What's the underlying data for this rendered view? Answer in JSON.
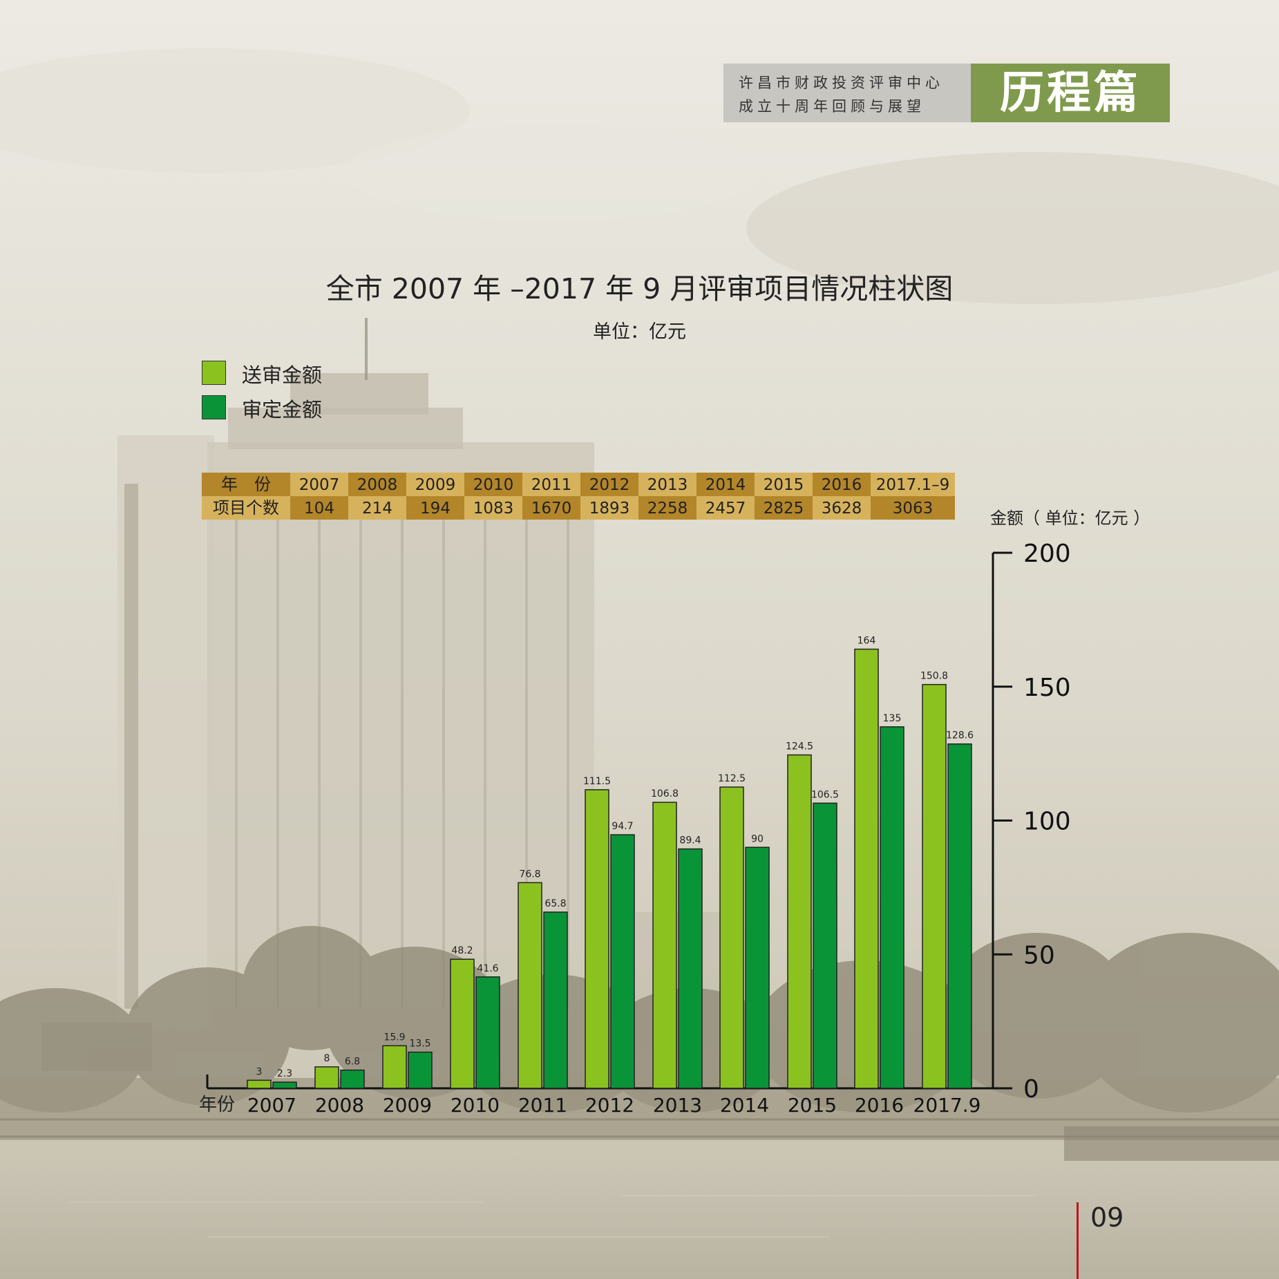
{
  "header": {
    "subtitle_line1": "许昌市财政投资评审中心",
    "subtitle_line2": "成立十周年回顾与展望",
    "section_title": "历程篇"
  },
  "page_number": "09",
  "colors": {
    "submitted": "#8cc220",
    "approved": "#0a9438",
    "table_dark": "#b3862a",
    "table_light": "#d6b25c",
    "header_green": "#7f9a4c",
    "page_line": "#c0141c"
  },
  "chart_data": {
    "type": "bar",
    "title": "全市 2007 年 –2017 年 9 月评审项目情况柱状图",
    "subtitle": "单位：亿元",
    "xlabel": "年份",
    "ylabel": "金额（ 单位：亿元 ）",
    "ylim": [
      0,
      200
    ],
    "yticks": [
      0,
      50,
      100,
      150,
      200
    ],
    "y_axis_position": "right",
    "grid": false,
    "legend_position": "top-left",
    "categories": [
      "2007",
      "2008",
      "2009",
      "2010",
      "2011",
      "2012",
      "2013",
      "2014",
      "2015",
      "2016",
      "2017.9"
    ],
    "series": [
      {
        "name": "送审金额",
        "values": [
          3,
          8,
          15.9,
          48.2,
          76.8,
          111.5,
          106.8,
          112.5,
          124.5,
          164,
          150.8
        ]
      },
      {
        "name": "审定金额",
        "values": [
          2.3,
          6.8,
          13.5,
          41.6,
          65.8,
          94.7,
          89.4,
          90,
          106.5,
          135,
          128.6
        ]
      }
    ],
    "project_table": {
      "year_header": "年　份",
      "count_header": "项目个数",
      "years": [
        "2007",
        "2008",
        "2009",
        "2010",
        "2011",
        "2012",
        "2013",
        "2014",
        "2015",
        "2016",
        "2017.1–9"
      ],
      "counts": [
        "104",
        "214",
        "194",
        "1083",
        "1670",
        "1893",
        "2258",
        "2457",
        "2825",
        "3628",
        "3063"
      ]
    }
  }
}
